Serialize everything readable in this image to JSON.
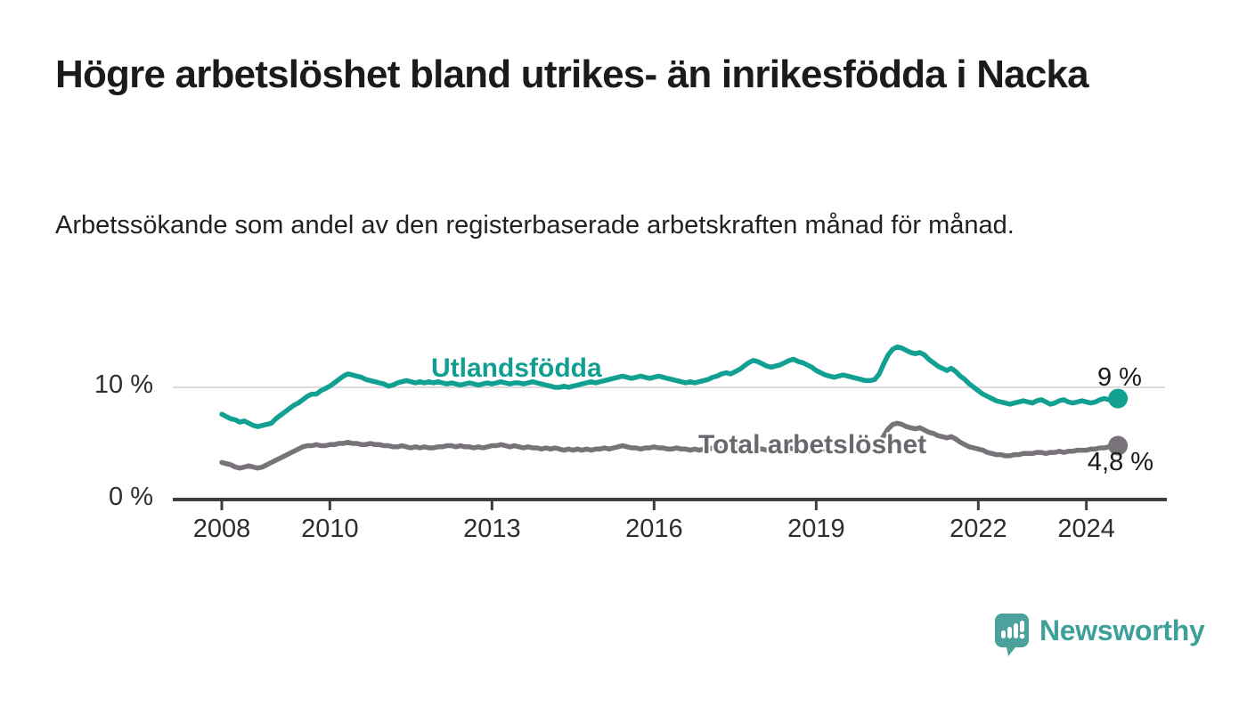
{
  "header": {
    "title": "Högre arbetslöshet bland utrikes- än inrikesfödda i Nacka",
    "subtitle": "Arbetssökande som andel av den registerbaserade arbetskraften månad för månad."
  },
  "chart_data": {
    "type": "line",
    "x_start_year": 2008,
    "x_interval": "monthly",
    "x_end": "2024-08",
    "x_ticks": [
      2008,
      2010,
      2013,
      2016,
      2019,
      2022,
      2024
    ],
    "y_ticks": [
      {
        "value": 0,
        "label": "0 %",
        "gridline": false
      },
      {
        "value": 10,
        "label": "10 %",
        "gridline": true
      }
    ],
    "ylim": [
      0,
      14.5
    ],
    "grid_color": "#dcdcdc",
    "axis_color": "#3d3d3d",
    "series": [
      {
        "name": "Utlandsfödda",
        "color": "#11a092",
        "label_color": "#0f9e90",
        "end_label": "9 %",
        "end_value": 9.0,
        "values": [
          7.6,
          7.4,
          7.2,
          7.1,
          6.9,
          7.0,
          6.8,
          6.6,
          6.5,
          6.6,
          6.7,
          6.8,
          7.2,
          7.5,
          7.8,
          8.1,
          8.4,
          8.6,
          8.9,
          9.2,
          9.4,
          9.4,
          9.7,
          9.9,
          10.1,
          10.4,
          10.7,
          11.0,
          11.2,
          11.1,
          11.0,
          10.9,
          10.7,
          10.6,
          10.5,
          10.4,
          10.3,
          10.1,
          10.2,
          10.4,
          10.5,
          10.6,
          10.5,
          10.4,
          10.5,
          10.4,
          10.5,
          10.4,
          10.5,
          10.4,
          10.3,
          10.4,
          10.3,
          10.2,
          10.3,
          10.4,
          10.3,
          10.2,
          10.3,
          10.4,
          10.3,
          10.4,
          10.5,
          10.4,
          10.3,
          10.4,
          10.4,
          10.3,
          10.4,
          10.5,
          10.4,
          10.3,
          10.2,
          10.1,
          10.0,
          10.0,
          10.1,
          10.0,
          10.1,
          10.2,
          10.3,
          10.4,
          10.5,
          10.4,
          10.5,
          10.6,
          10.7,
          10.8,
          10.9,
          11.0,
          10.9,
          10.8,
          10.9,
          11.0,
          10.9,
          10.8,
          10.9,
          11.0,
          10.9,
          10.8,
          10.7,
          10.6,
          10.5,
          10.4,
          10.5,
          10.4,
          10.5,
          10.6,
          10.7,
          10.9,
          11.0,
          11.2,
          11.3,
          11.2,
          11.4,
          11.6,
          11.9,
          12.2,
          12.4,
          12.3,
          12.1,
          11.9,
          11.8,
          11.9,
          12.0,
          12.2,
          12.4,
          12.5,
          12.3,
          12.2,
          12.0,
          11.8,
          11.5,
          11.3,
          11.1,
          11.0,
          10.9,
          11.0,
          11.1,
          11.0,
          10.9,
          10.8,
          10.7,
          10.6,
          10.6,
          10.7,
          11.2,
          12.1,
          12.9,
          13.4,
          13.6,
          13.5,
          13.3,
          13.1,
          13.0,
          13.1,
          12.9,
          12.5,
          12.2,
          11.9,
          11.7,
          11.5,
          11.7,
          11.4,
          11.0,
          10.7,
          10.3,
          10.0,
          9.7,
          9.4,
          9.2,
          9.0,
          8.8,
          8.7,
          8.6,
          8.5,
          8.6,
          8.7,
          8.8,
          8.7,
          8.6,
          8.8,
          8.9,
          8.7,
          8.5,
          8.6,
          8.8,
          8.9,
          8.7,
          8.6,
          8.7,
          8.8,
          8.7,
          8.6,
          8.7,
          8.9,
          9.0,
          8.9,
          8.9,
          9.0
        ]
      },
      {
        "name": "Total arbetslöshet",
        "color": "#777378",
        "label_color": "#6b676e",
        "end_label": "4,8 %",
        "end_value": 4.8,
        "values": [
          3.3,
          3.2,
          3.1,
          2.9,
          2.8,
          2.9,
          3.0,
          2.9,
          2.8,
          2.9,
          3.1,
          3.3,
          3.5,
          3.7,
          3.9,
          4.1,
          4.3,
          4.5,
          4.7,
          4.8,
          4.8,
          4.9,
          4.8,
          4.8,
          4.9,
          4.9,
          5.0,
          5.0,
          5.1,
          5.0,
          5.0,
          4.9,
          4.9,
          5.0,
          4.9,
          4.9,
          4.8,
          4.8,
          4.7,
          4.7,
          4.8,
          4.7,
          4.6,
          4.7,
          4.6,
          4.7,
          4.6,
          4.6,
          4.7,
          4.7,
          4.8,
          4.8,
          4.7,
          4.8,
          4.7,
          4.7,
          4.6,
          4.7,
          4.6,
          4.7,
          4.8,
          4.8,
          4.9,
          4.8,
          4.7,
          4.8,
          4.7,
          4.6,
          4.7,
          4.6,
          4.6,
          4.5,
          4.6,
          4.5,
          4.6,
          4.5,
          4.4,
          4.5,
          4.4,
          4.5,
          4.4,
          4.5,
          4.4,
          4.5,
          4.5,
          4.6,
          4.5,
          4.6,
          4.7,
          4.8,
          4.7,
          4.6,
          4.6,
          4.5,
          4.6,
          4.6,
          4.7,
          4.6,
          4.6,
          4.5,
          4.5,
          4.6,
          4.5,
          4.5,
          4.4,
          4.5,
          4.4,
          4.5,
          4.5,
          4.6,
          4.6,
          4.5,
          4.6,
          4.6,
          4.7,
          4.6,
          4.6,
          4.5,
          4.6,
          4.5,
          4.5,
          4.4,
          4.5,
          4.4,
          4.4,
          4.5,
          4.6,
          4.5,
          4.4,
          4.4,
          4.3,
          4.4,
          4.4,
          4.3,
          4.4,
          4.3,
          4.3,
          4.4,
          4.4,
          4.3,
          4.3,
          4.4,
          4.4,
          4.4,
          4.4,
          4.5,
          4.9,
          5.7,
          6.3,
          6.7,
          6.8,
          6.7,
          6.5,
          6.4,
          6.3,
          6.4,
          6.2,
          6.0,
          5.9,
          5.7,
          5.6,
          5.5,
          5.6,
          5.4,
          5.1,
          4.9,
          4.7,
          4.6,
          4.5,
          4.4,
          4.2,
          4.1,
          4.0,
          4.0,
          3.9,
          3.9,
          4.0,
          4.0,
          4.1,
          4.1,
          4.1,
          4.2,
          4.2,
          4.1,
          4.2,
          4.2,
          4.3,
          4.2,
          4.3,
          4.3,
          4.4,
          4.4,
          4.4,
          4.5,
          4.5,
          4.6,
          4.6,
          4.7,
          4.7,
          4.8
        ]
      }
    ]
  },
  "branding": {
    "logo_text": "Newsworthy",
    "logo_mark_color": "#4ba29c",
    "logo_text_color": "#3da099"
  }
}
